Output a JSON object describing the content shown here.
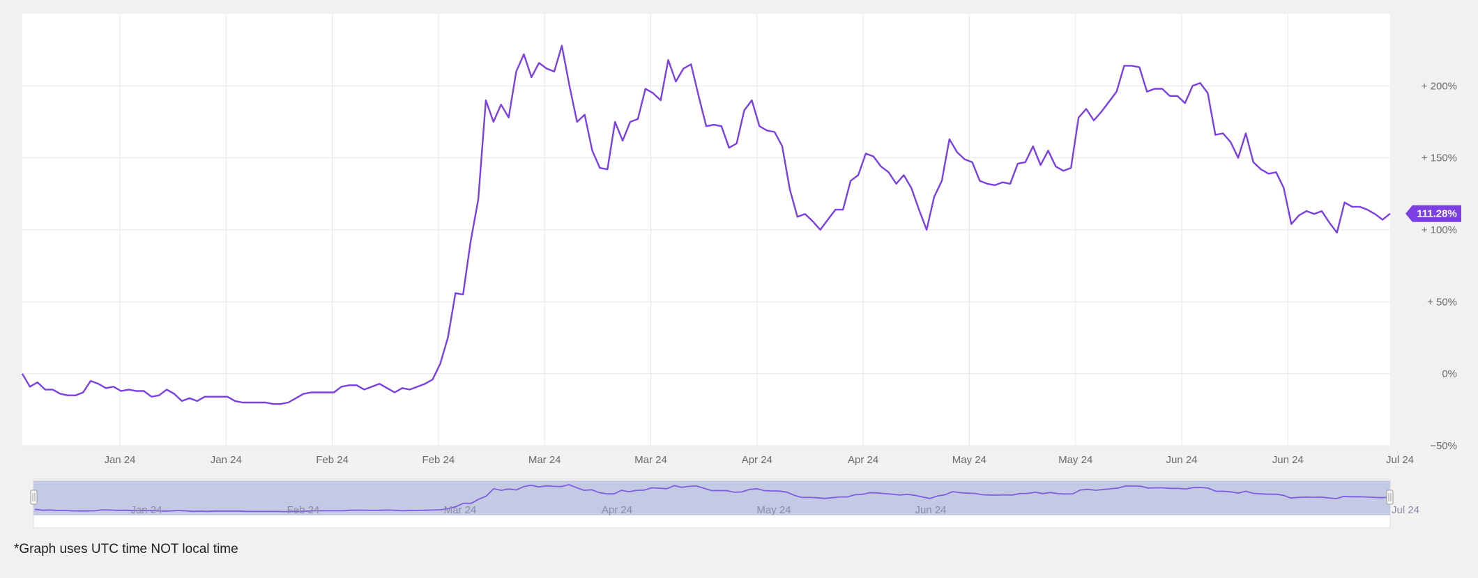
{
  "footnote": "*Graph uses UTC time NOT local time",
  "colors": {
    "line": "#7b3fe4",
    "badge_bg": "#7b3fe4",
    "badge_text": "#ffffff",
    "grid": "#e6e6e6",
    "navigator_fill": "#c5cae4",
    "navigator_line": "#7b5fe0",
    "background": "#f1f1f1",
    "plot_bg": "#ffffff"
  },
  "chart_data": {
    "type": "line",
    "title": "",
    "xlabel": "",
    "ylabel": "",
    "grid": true,
    "y_axis_position": "right",
    "ylim": [
      -50,
      250
    ],
    "y_ticks": [
      {
        "value": 200,
        "label": "+ 200%"
      },
      {
        "value": 150,
        "label": "+ 150%"
      },
      {
        "value": 100,
        "label": "+ 100%"
      },
      {
        "value": 50,
        "label": "+ 50%"
      },
      {
        "value": 0,
        "label": "0%"
      },
      {
        "value": -50,
        "label": "−50%"
      }
    ],
    "x_ticks": [
      "Jan 24",
      "Jan 24",
      "Feb 24",
      "Feb 24",
      "Mar 24",
      "Mar 24",
      "Apr 24",
      "Apr 24",
      "May 24",
      "May 24",
      "Jun 24",
      "Jun 24",
      "Jul 24"
    ],
    "current_value_label": "111.28%",
    "current_value": 111.28,
    "series": [
      {
        "values": [
          0,
          -9,
          -6,
          -11,
          -11,
          -14,
          -15,
          -15,
          -13,
          -5,
          -7,
          -10,
          -9,
          -12,
          -11,
          -12,
          -12,
          -16,
          -15,
          -11,
          -14,
          -19,
          -17,
          -19,
          -16,
          -16,
          -16,
          -16,
          -19,
          -20,
          -20,
          -20,
          -20,
          -21,
          -21,
          -20,
          -17,
          -14,
          -13,
          -13,
          -13,
          -13,
          -9,
          -8,
          -8,
          -11,
          -9,
          -7,
          -10,
          -13,
          -10,
          -11,
          -9,
          -7,
          -4,
          7,
          25,
          56,
          55,
          92,
          121,
          190,
          175,
          187,
          178,
          210,
          222,
          206,
          216,
          212,
          210,
          228,
          200,
          175,
          180,
          155,
          143,
          142,
          175,
          162,
          175,
          177,
          198,
          195,
          190,
          218,
          203,
          212,
          215,
          193,
          172,
          173,
          172,
          157,
          160,
          183,
          190,
          172,
          169,
          168,
          158,
          128,
          109,
          111,
          106,
          100,
          107,
          114,
          114,
          134,
          138,
          153,
          151,
          144,
          140,
          132,
          138,
          129,
          114,
          100,
          123,
          134,
          163,
          154,
          149,
          147,
          134,
          132,
          131,
          133,
          132,
          146,
          147,
          158,
          145,
          155,
          144,
          141,
          143,
          178,
          184,
          176,
          182,
          189,
          196,
          214,
          214,
          213,
          196,
          198,
          198,
          193,
          193,
          188,
          200,
          202,
          195,
          166,
          167,
          161,
          150,
          167,
          147,
          142,
          139,
          140,
          129,
          104,
          110,
          113,
          111,
          113,
          105,
          98,
          119,
          116,
          116,
          114,
          111,
          107,
          111.28
        ]
      }
    ]
  }
}
